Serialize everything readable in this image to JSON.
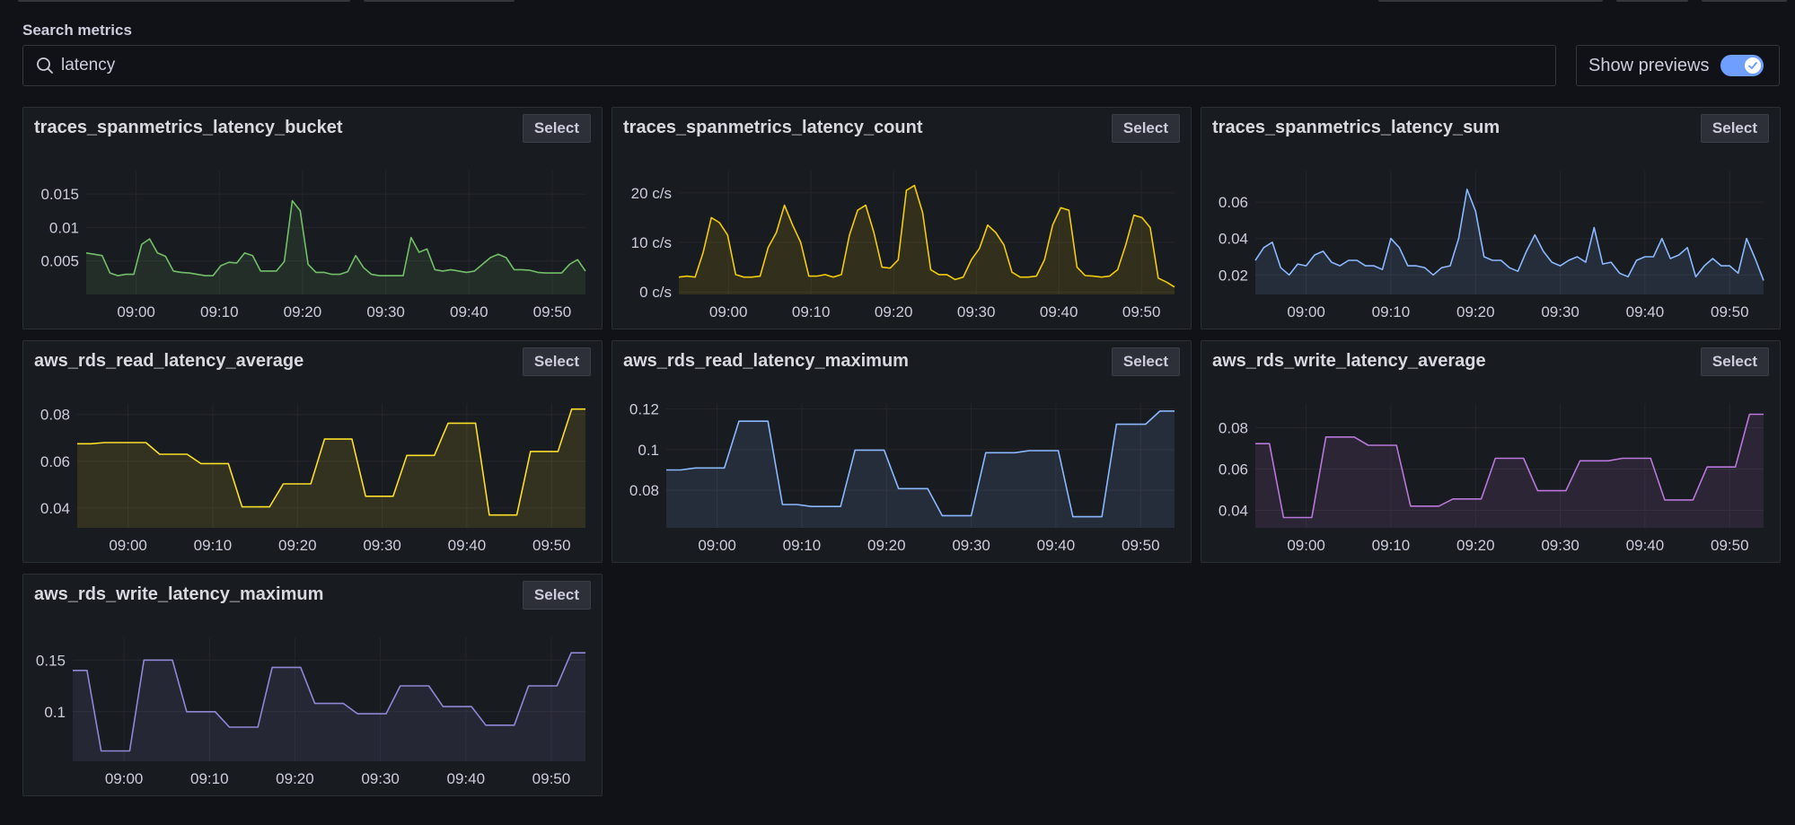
{
  "search": {
    "label": "Search metrics",
    "value": "latency",
    "icon": "search-icon"
  },
  "previews": {
    "label": "Show previews",
    "enabled": true
  },
  "select_label": "Select",
  "accent": "#6e9fff",
  "metrics": [
    {
      "name": "traces_spanmetrics_latency_bucket",
      "color": "#73bf69",
      "y_ticks": [
        {
          "value": 0.015,
          "label": "0.015"
        },
        {
          "value": 0.01,
          "label": "0.01"
        },
        {
          "value": 0.005,
          "label": "0.005"
        }
      ],
      "x_ticks": [
        "09:00",
        "09:10",
        "09:20",
        "09:30",
        "09:40",
        "09:50"
      ],
      "chart_data": {
        "type": "area",
        "xlabel": "",
        "ylabel": "",
        "x_range": [
          "08:54",
          "09:54"
        ],
        "ylim": [
          0,
          0.0185
        ],
        "values": [
          0.0062,
          0.006,
          0.0058,
          0.0032,
          0.0028,
          0.003,
          0.003,
          0.0075,
          0.0083,
          0.0062,
          0.0057,
          0.0035,
          0.0033,
          0.0032,
          0.003,
          0.0028,
          0.0028,
          0.0043,
          0.0048,
          0.0047,
          0.0062,
          0.0058,
          0.0035,
          0.0035,
          0.0035,
          0.0049,
          0.014,
          0.0125,
          0.0045,
          0.0033,
          0.0033,
          0.003,
          0.003,
          0.0034,
          0.0058,
          0.004,
          0.003,
          0.0028,
          0.0028,
          0.0028,
          0.0028,
          0.0085,
          0.0063,
          0.0068,
          0.0037,
          0.0035,
          0.0037,
          0.0035,
          0.0033,
          0.0035,
          0.0045,
          0.0055,
          0.006,
          0.0055,
          0.0037,
          0.0037,
          0.0036,
          0.0033,
          0.0032,
          0.0032,
          0.0032,
          0.0045,
          0.0052,
          0.0035
        ]
      }
    },
    {
      "name": "traces_spanmetrics_latency_count",
      "color": "#f2cc0c",
      "y_ticks": [
        {
          "value": 20,
          "label": "20 c/s"
        },
        {
          "value": 10,
          "label": "10 c/s"
        },
        {
          "value": 0,
          "label": "0 c/s"
        }
      ],
      "x_ticks": [
        "09:00",
        "09:10",
        "09:20",
        "09:30",
        "09:40",
        "09:50"
      ],
      "chart_data": {
        "type": "area",
        "xlabel": "",
        "ylabel": "",
        "x_range": [
          "08:54",
          "09:54"
        ],
        "ylim": [
          -0.5,
          24.5
        ],
        "values": [
          3,
          3.2,
          3,
          8,
          15,
          14,
          11.5,
          3.5,
          3,
          3,
          3.2,
          9,
          12,
          17.5,
          13.5,
          10,
          3.2,
          3.2,
          3.5,
          3,
          3.5,
          11.5,
          16.5,
          17.5,
          12,
          5,
          4.8,
          6.5,
          20.5,
          21.5,
          16,
          4.5,
          3.5,
          3.5,
          2.5,
          3,
          6.5,
          8.8,
          13.5,
          12,
          9.5,
          4,
          3,
          3,
          3.2,
          6.5,
          13.5,
          17,
          16.5,
          5,
          3.3,
          3.2,
          3,
          3.2,
          4.5,
          9.5,
          15.5,
          15,
          13,
          2.8,
          2,
          1
        ]
      }
    },
    {
      "name": "traces_spanmetrics_latency_sum",
      "color": "#8ab8ff",
      "y_ticks": [
        {
          "value": 0.06,
          "label": "0.06"
        },
        {
          "value": 0.04,
          "label": "0.04"
        },
        {
          "value": 0.02,
          "label": "0.02"
        }
      ],
      "x_ticks": [
        "09:00",
        "09:10",
        "09:20",
        "09:30",
        "09:40",
        "09:50"
      ],
      "chart_data": {
        "type": "area",
        "xlabel": "",
        "ylabel": "",
        "x_range": [
          "08:54",
          "09:54"
        ],
        "ylim": [
          0.0093,
          0.0773
        ],
        "values": [
          0.028,
          0.035,
          0.038,
          0.024,
          0.02,
          0.026,
          0.025,
          0.031,
          0.033,
          0.027,
          0.025,
          0.028,
          0.028,
          0.025,
          0.025,
          0.023,
          0.04,
          0.035,
          0.025,
          0.025,
          0.024,
          0.02,
          0.024,
          0.025,
          0.04,
          0.067,
          0.055,
          0.03,
          0.028,
          0.028,
          0.024,
          0.022,
          0.033,
          0.042,
          0.033,
          0.027,
          0.025,
          0.028,
          0.03,
          0.027,
          0.046,
          0.026,
          0.027,
          0.021,
          0.019,
          0.028,
          0.03,
          0.03,
          0.04,
          0.029,
          0.031,
          0.035,
          0.019,
          0.025,
          0.029,
          0.025,
          0.025,
          0.021,
          0.04,
          0.029,
          0.017
        ]
      }
    },
    {
      "name": "aws_rds_read_latency_average",
      "color": "#fade2a",
      "y_ticks": [
        {
          "value": 0.08,
          "label": "0.08"
        },
        {
          "value": 0.06,
          "label": "0.06"
        },
        {
          "value": 0.04,
          "label": "0.04"
        }
      ],
      "x_ticks": [
        "09:00",
        "09:10",
        "09:20",
        "09:30",
        "09:40",
        "09:50"
      ],
      "chart_data": {
        "type": "area",
        "xlabel": "",
        "ylabel": "",
        "x_range": [
          "08:54",
          "09:54"
        ],
        "ylim": [
          0.0315,
          0.0845
        ],
        "values": [
          0.0675,
          0.0675,
          0.068,
          0.068,
          0.068,
          0.068,
          0.063,
          0.063,
          0.063,
          0.059,
          0.059,
          0.059,
          0.0405,
          0.0405,
          0.0405,
          0.0503,
          0.0503,
          0.0503,
          0.0695,
          0.0695,
          0.0695,
          0.045,
          0.045,
          0.045,
          0.0625,
          0.0625,
          0.0625,
          0.0763,
          0.0763,
          0.0763,
          0.037,
          0.037,
          0.037,
          0.0642,
          0.0642,
          0.0642,
          0.0823,
          0.0823
        ]
      }
    },
    {
      "name": "aws_rds_read_latency_maximum",
      "color": "#8ab8ff",
      "y_ticks": [
        {
          "value": 0.12,
          "label": "0.12"
        },
        {
          "value": 0.1,
          "label": "0.1"
        },
        {
          "value": 0.08,
          "label": "0.08"
        }
      ],
      "x_ticks": [
        "09:00",
        "09:10",
        "09:20",
        "09:30",
        "09:40",
        "09:50"
      ],
      "chart_data": {
        "type": "area",
        "xlabel": "",
        "ylabel": "",
        "x_range": [
          "08:54",
          "09:54"
        ],
        "ylim": [
          0.0615,
          0.1225
        ],
        "values": [
          0.09,
          0.09,
          0.091,
          0.091,
          0.091,
          0.114,
          0.114,
          0.114,
          0.073,
          0.073,
          0.072,
          0.072,
          0.072,
          0.0998,
          0.0998,
          0.0998,
          0.0808,
          0.0808,
          0.0808,
          0.0675,
          0.0675,
          0.0675,
          0.0985,
          0.0985,
          0.0985,
          0.0995,
          0.0995,
          0.0995,
          0.067,
          0.067,
          0.067,
          0.1125,
          0.1125,
          0.1125,
          0.119,
          0.119
        ]
      }
    },
    {
      "name": "aws_rds_write_latency_average",
      "color": "#b877d9",
      "y_ticks": [
        {
          "value": 0.08,
          "label": "0.08"
        },
        {
          "value": 0.06,
          "label": "0.06"
        },
        {
          "value": 0.04,
          "label": "0.04"
        }
      ],
      "x_ticks": [
        "09:00",
        "09:10",
        "09:20",
        "09:30",
        "09:40",
        "09:50"
      ],
      "chart_data": {
        "type": "area",
        "xlabel": "",
        "ylabel": "",
        "x_range": [
          "08:54",
          "09:54"
        ],
        "ylim": [
          0.0315,
          0.0915
        ],
        "values": [
          0.0723,
          0.0723,
          0.0365,
          0.0365,
          0.0365,
          0.0755,
          0.0755,
          0.0755,
          0.0715,
          0.0715,
          0.0715,
          0.042,
          0.042,
          0.042,
          0.0455,
          0.0455,
          0.0455,
          0.0652,
          0.0652,
          0.0652,
          0.0495,
          0.0495,
          0.0495,
          0.064,
          0.064,
          0.064,
          0.0652,
          0.0652,
          0.0652,
          0.045,
          0.045,
          0.045,
          0.061,
          0.061,
          0.061,
          0.0865,
          0.0865
        ]
      }
    },
    {
      "name": "aws_rds_write_latency_maximum",
      "color": "#8f87d6",
      "y_ticks": [
        {
          "value": 0.15,
          "label": "0.15"
        },
        {
          "value": 0.1,
          "label": "0.1"
        }
      ],
      "x_ticks": [
        "09:00",
        "09:10",
        "09:20",
        "09:30",
        "09:40",
        "09:50"
      ],
      "chart_data": {
        "type": "area",
        "xlabel": "",
        "ylabel": "",
        "x_range": [
          "08:54",
          "09:54"
        ],
        "ylim": [
          0.052,
          0.172
        ],
        "values": [
          0.14,
          0.14,
          0.062,
          0.062,
          0.062,
          0.15,
          0.15,
          0.15,
          0.1,
          0.1,
          0.1,
          0.085,
          0.085,
          0.085,
          0.143,
          0.143,
          0.143,
          0.108,
          0.108,
          0.108,
          0.098,
          0.098,
          0.098,
          0.125,
          0.125,
          0.125,
          0.105,
          0.105,
          0.105,
          0.087,
          0.087,
          0.087,
          0.125,
          0.125,
          0.125,
          0.157,
          0.157
        ]
      }
    }
  ]
}
